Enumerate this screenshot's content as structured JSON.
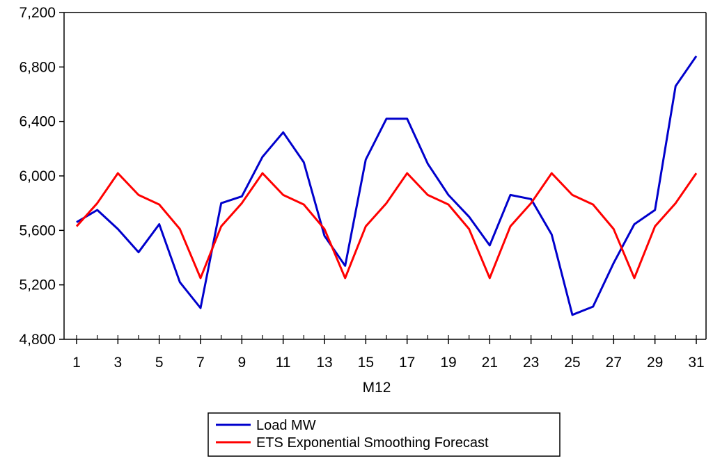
{
  "chart_data": {
    "type": "line",
    "title": "",
    "xlabel": "M12",
    "ylabel": "",
    "xlim": [
      1,
      31
    ],
    "ylim": [
      4800,
      7200
    ],
    "yticks": [
      4800,
      5200,
      5600,
      6000,
      6400,
      6800,
      7200
    ],
    "ytick_labels": [
      "4,800",
      "5,200",
      "5,600",
      "6,000",
      "6,400",
      "6,800",
      "7,200"
    ],
    "xtick_labels": [
      "1",
      "3",
      "5",
      "7",
      "9",
      "11",
      "13",
      "15",
      "17",
      "19",
      "21",
      "23",
      "25",
      "27",
      "29",
      "31"
    ],
    "grid": false,
    "legend_position": "bottom-center",
    "x": [
      1,
      2,
      3,
      4,
      5,
      6,
      7,
      8,
      9,
      10,
      11,
      12,
      13,
      14,
      15,
      16,
      17,
      18,
      19,
      20,
      21,
      22,
      23,
      24,
      25,
      26,
      27,
      28,
      29,
      30,
      31
    ],
    "series": [
      {
        "name": "Load MW",
        "color": "#0000cc",
        "values": [
          5660,
          5750,
          5610,
          5440,
          5645,
          5220,
          5030,
          5800,
          5850,
          6140,
          6320,
          6100,
          5560,
          5340,
          6120,
          6420,
          6420,
          6090,
          5860,
          5700,
          5490,
          5860,
          5830,
          5570,
          4980,
          5040,
          5360,
          5645,
          5750,
          6660,
          6880
        ]
      },
      {
        "name": "ETS Exponential Smoothing Forecast",
        "color": "#ff0000",
        "values": [
          5630,
          5800,
          6020,
          5860,
          5790,
          5610,
          5250,
          5630,
          5800,
          6020,
          5860,
          5790,
          5610,
          5250,
          5630,
          5800,
          6020,
          5860,
          5790,
          5610,
          5250,
          5630,
          5800,
          6020,
          5860,
          5790,
          5610,
          5250,
          5630,
          5800,
          6020
        ]
      }
    ]
  }
}
